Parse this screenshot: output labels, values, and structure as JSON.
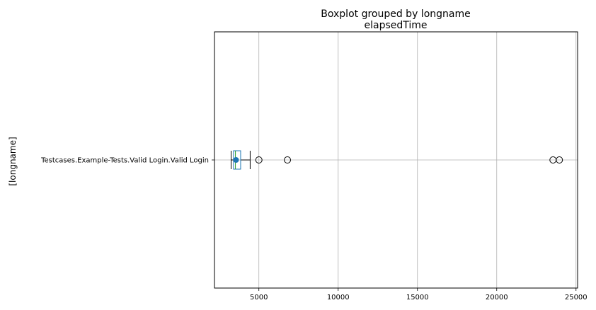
{
  "chart_data": {
    "type": "boxplot",
    "orientation": "horizontal",
    "suptitle": "Boxplot grouped by longname",
    "title": "elapsedTime",
    "ylabel": "[longname]",
    "xlabel": "",
    "xlim": [
      2200,
      25100
    ],
    "xticks": [
      5000,
      10000,
      15000,
      20000,
      25000
    ],
    "xtick_labels": [
      "5000",
      "10000",
      "15000",
      "20000",
      "25000"
    ],
    "grid": true,
    "categories": [
      "Testcases.Example-Tests.Valid Login.Valid Login"
    ],
    "boxes": [
      {
        "category": "Testcases.Example-Tests.Valid Login.Valid Login",
        "whisker_low": 3250,
        "q1": 3400,
        "median": 3520,
        "mean": 3560,
        "q3": 3850,
        "whisker_high": 4450,
        "outliers": [
          5000,
          6800,
          23550,
          23950
        ]
      }
    ],
    "colors": {
      "box": "#1f77b4",
      "median": "#2ca02c",
      "mean": "#1f77b4",
      "whisker": "#000000",
      "grid": "#b0b0b0"
    }
  }
}
